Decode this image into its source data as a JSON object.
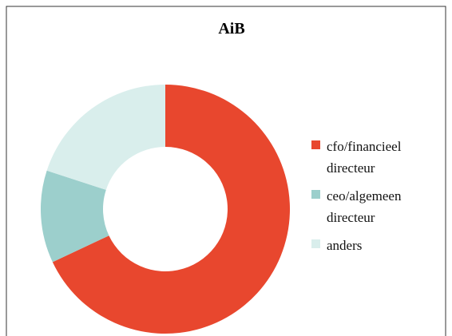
{
  "chart_data": {
    "type": "donut",
    "title": "AiB",
    "categories": [
      "cfo/financieel directeur",
      "ceo/algemeen directeur",
      "anders"
    ],
    "values": [
      68,
      12,
      20
    ],
    "colors": [
      "#e8472e",
      "#9ccfcc",
      "#d9eeec"
    ]
  }
}
